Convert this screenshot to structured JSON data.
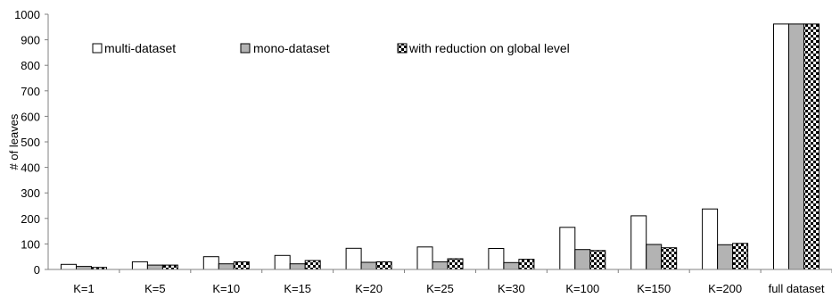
{
  "chart_data": {
    "type": "bar",
    "ylabel": "# of leaves",
    "xlabel": "",
    "ylim": [
      0,
      1000
    ],
    "yticks": [
      0,
      100,
      200,
      300,
      400,
      500,
      600,
      700,
      800,
      900,
      1000
    ],
    "grid": false,
    "legend_position": "top-left",
    "categories": [
      "K=1",
      "K=5",
      "K=10",
      "K=15",
      "K=20",
      "K=25",
      "K=30",
      "K=100",
      "K=150",
      "K=200",
      "full dataset"
    ],
    "series": [
      {
        "name": "multi-dataset",
        "fill": "white",
        "values": [
          20,
          30,
          50,
          55,
          83,
          88,
          82,
          165,
          210,
          237,
          962
        ]
      },
      {
        "name": "mono-dataset",
        "fill": "gray",
        "values": [
          12,
          17,
          22,
          22,
          28,
          30,
          27,
          78,
          98,
          97,
          962
        ]
      },
      {
        "name": "with reduction on global level",
        "fill": "checker",
        "values": [
          8,
          17,
          30,
          35,
          30,
          42,
          40,
          74,
          85,
          102,
          962
        ]
      }
    ],
    "colors": {
      "gray": "#b3b3b3",
      "outline": "#000000",
      "axis": "#808080"
    }
  }
}
